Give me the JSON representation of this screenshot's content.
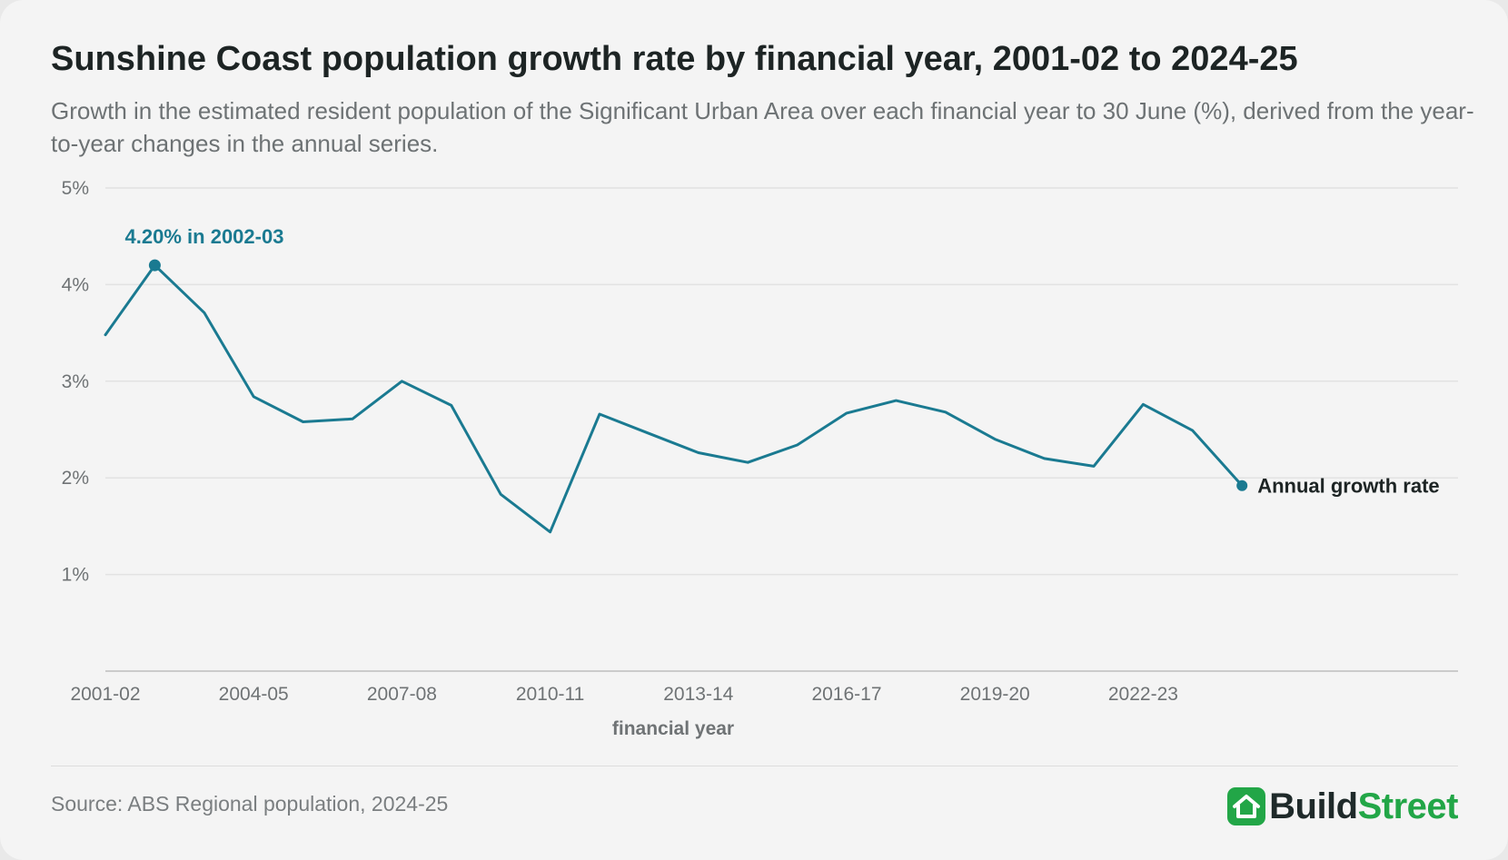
{
  "title": "Sunshine Coast population growth rate by financial year, 2001-02 to 2024-25",
  "subtitle": "Growth in the estimated resident population of the Significant Urban Area over each financial year to 30 June (%), derived from the year-to-year changes in the annual series.",
  "source": "Source: ABS Regional population, 2024-25",
  "brand": {
    "part1": "Build",
    "part2": "Street",
    "icon": "house-icon"
  },
  "colors": {
    "line": "#1a7a91",
    "grid": "#e2e2e2",
    "axis": "#bdbdbd",
    "brand_green": "#22a647"
  },
  "chart_data": {
    "type": "line",
    "x": [
      "2001-02",
      "2002-03",
      "2003-04",
      "2004-05",
      "2005-06",
      "2006-07",
      "2007-08",
      "2008-09",
      "2009-10",
      "2010-11",
      "2011-12",
      "2012-13",
      "2013-14",
      "2014-15",
      "2015-16",
      "2016-17",
      "2017-18",
      "2018-19",
      "2019-20",
      "2020-21",
      "2021-22",
      "2022-23",
      "2023-24",
      "2024-25"
    ],
    "series": [
      {
        "name": "Annual growth rate",
        "values": [
          3.48,
          4.2,
          3.71,
          2.84,
          2.58,
          2.61,
          3.0,
          2.75,
          1.83,
          1.44,
          2.66,
          2.46,
          2.26,
          2.16,
          2.34,
          2.67,
          2.8,
          2.68,
          2.4,
          2.2,
          2.12,
          2.76,
          2.49,
          1.92
        ]
      }
    ],
    "xticks": [
      "2001-02",
      "2004-05",
      "2007-08",
      "2010-11",
      "2013-14",
      "2016-17",
      "2019-20",
      "2022-23"
    ],
    "yticks": [
      1,
      2,
      3,
      4,
      5
    ],
    "ytick_labels": [
      "1%",
      "2%",
      "3%",
      "4%",
      "5%"
    ],
    "ylim": [
      0,
      5
    ],
    "xlabel": "financial year",
    "ylabel": "",
    "grid": true,
    "annotation": {
      "text": "4.20% in 2002-03",
      "x": "2002-03",
      "y": 4.2
    },
    "end_label": "Annual growth rate"
  }
}
